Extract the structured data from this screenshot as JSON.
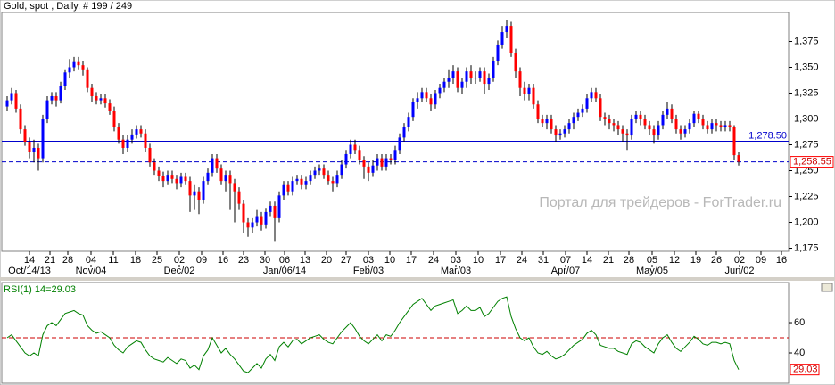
{
  "chart_data": [
    {
      "type": "candlestick",
      "title": "Gold, spot , Daily, # 199 / 249",
      "watermark": "Портал для трейдеров - ForTrader.ru",
      "up_color": "#0000ff",
      "down_color": "#ff0000",
      "wick_color": "#000000",
      "open": [
        1312,
        1318,
        1325,
        1310,
        1290,
        1278,
        1268,
        1272,
        1262,
        1300,
        1318,
        1322,
        1318,
        1332,
        1345,
        1350,
        1355,
        1352,
        1348,
        1330,
        1322,
        1318,
        1320,
        1315,
        1308,
        1292,
        1280,
        1272,
        1280,
        1285,
        1290,
        1286,
        1272,
        1258,
        1250,
        1245,
        1240,
        1246,
        1242,
        1238,
        1244,
        1240,
        1226,
        1230,
        1222,
        1240,
        1248,
        1262,
        1252,
        1240,
        1246,
        1238,
        1230,
        1218,
        1200,
        1195,
        1200,
        1206,
        1198,
        1210,
        1216,
        1204,
        1226,
        1236,
        1230,
        1240,
        1242,
        1236,
        1240,
        1246,
        1250,
        1252,
        1246,
        1240,
        1238,
        1246,
        1256,
        1266,
        1275,
        1270,
        1260,
        1254,
        1248,
        1255,
        1262,
        1254,
        1262,
        1260,
        1270,
        1282,
        1292,
        1302,
        1316,
        1320,
        1326,
        1320,
        1314,
        1325,
        1330,
        1336,
        1340,
        1346,
        1330,
        1336,
        1346,
        1340,
        1340,
        1346,
        1334,
        1340,
        1356,
        1372,
        1384,
        1390,
        1364,
        1346,
        1330,
        1324,
        1330,
        1314,
        1300,
        1296,
        1300,
        1290,
        1284,
        1286,
        1290,
        1296,
        1302,
        1306,
        1310,
        1320,
        1326,
        1320,
        1302,
        1300,
        1296,
        1294,
        1290,
        1286,
        1284,
        1300,
        1304,
        1300,
        1294,
        1290,
        1284,
        1294,
        1304,
        1310,
        1300,
        1290,
        1286,
        1290,
        1296,
        1305,
        1300,
        1294,
        1290,
        1296,
        1294,
        1292,
        1294,
        1292,
        1265
      ],
      "high": [
        1322,
        1330,
        1328,
        1314,
        1294,
        1282,
        1280,
        1276,
        1304,
        1322,
        1326,
        1326,
        1336,
        1348,
        1358,
        1360,
        1360,
        1356,
        1350,
        1334,
        1326,
        1324,
        1324,
        1319,
        1312,
        1296,
        1284,
        1284,
        1290,
        1294,
        1294,
        1290,
        1276,
        1262,
        1254,
        1249,
        1250,
        1250,
        1246,
        1248,
        1248,
        1244,
        1236,
        1234,
        1244,
        1252,
        1266,
        1266,
        1256,
        1250,
        1250,
        1242,
        1234,
        1222,
        1204,
        1204,
        1212,
        1210,
        1214,
        1220,
        1220,
        1230,
        1240,
        1240,
        1244,
        1246,
        1246,
        1244,
        1250,
        1254,
        1256,
        1256,
        1250,
        1244,
        1250,
        1260,
        1270,
        1280,
        1280,
        1274,
        1264,
        1258,
        1260,
        1266,
        1266,
        1266,
        1266,
        1274,
        1286,
        1296,
        1306,
        1320,
        1326,
        1330,
        1330,
        1324,
        1328,
        1334,
        1340,
        1348,
        1352,
        1350,
        1340,
        1350,
        1352,
        1346,
        1350,
        1350,
        1344,
        1360,
        1376,
        1390,
        1396,
        1394,
        1368,
        1350,
        1336,
        1334,
        1334,
        1318,
        1304,
        1304,
        1304,
        1294,
        1290,
        1294,
        1300,
        1306,
        1310,
        1314,
        1324,
        1330,
        1330,
        1324,
        1306,
        1304,
        1300,
        1298,
        1294,
        1290,
        1304,
        1308,
        1308,
        1304,
        1298,
        1294,
        1298,
        1308,
        1316,
        1314,
        1304,
        1294,
        1294,
        1300,
        1308,
        1308,
        1304,
        1298,
        1300,
        1300,
        1298,
        1298,
        1298,
        1294,
        1268
      ],
      "low": [
        1308,
        1314,
        1306,
        1286,
        1274,
        1262,
        1258,
        1250,
        1258,
        1296,
        1314,
        1312,
        1315,
        1328,
        1340,
        1346,
        1348,
        1342,
        1326,
        1316,
        1314,
        1314,
        1311,
        1304,
        1288,
        1276,
        1266,
        1268,
        1276,
        1281,
        1282,
        1268,
        1254,
        1246,
        1240,
        1234,
        1236,
        1238,
        1232,
        1234,
        1236,
        1210,
        1212,
        1208,
        1218,
        1236,
        1244,
        1248,
        1236,
        1230,
        1212,
        1200,
        1212,
        1190,
        1186,
        1190,
        1196,
        1192,
        1194,
        1206,
        1182,
        1200,
        1222,
        1226,
        1226,
        1236,
        1232,
        1232,
        1236,
        1242,
        1246,
        1242,
        1236,
        1230,
        1234,
        1242,
        1252,
        1262,
        1266,
        1256,
        1242,
        1240,
        1244,
        1250,
        1250,
        1250,
        1256,
        1256,
        1266,
        1278,
        1288,
        1298,
        1310,
        1316,
        1316,
        1308,
        1310,
        1320,
        1326,
        1330,
        1334,
        1326,
        1324,
        1330,
        1334,
        1334,
        1336,
        1324,
        1328,
        1336,
        1352,
        1368,
        1378,
        1360,
        1340,
        1322,
        1318,
        1318,
        1310,
        1296,
        1292,
        1290,
        1286,
        1278,
        1280,
        1282,
        1286,
        1290,
        1298,
        1302,
        1306,
        1316,
        1316,
        1298,
        1294,
        1290,
        1288,
        1284,
        1278,
        1270,
        1280,
        1296,
        1294,
        1290,
        1284,
        1276,
        1280,
        1290,
        1300,
        1296,
        1286,
        1280,
        1282,
        1286,
        1292,
        1296,
        1290,
        1286,
        1286,
        1288,
        1288,
        1288,
        1288,
        1260,
        1255
      ],
      "close": [
        1318,
        1325,
        1310,
        1290,
        1278,
        1268,
        1272,
        1262,
        1300,
        1318,
        1322,
        1318,
        1332,
        1345,
        1350,
        1355,
        1352,
        1348,
        1330,
        1322,
        1318,
        1320,
        1315,
        1308,
        1292,
        1280,
        1272,
        1280,
        1285,
        1290,
        1286,
        1272,
        1258,
        1250,
        1245,
        1240,
        1246,
        1242,
        1238,
        1244,
        1240,
        1226,
        1230,
        1222,
        1240,
        1248,
        1262,
        1252,
        1240,
        1246,
        1238,
        1230,
        1218,
        1200,
        1195,
        1200,
        1206,
        1198,
        1210,
        1216,
        1204,
        1226,
        1236,
        1230,
        1240,
        1242,
        1236,
        1240,
        1246,
        1250,
        1252,
        1246,
        1240,
        1238,
        1246,
        1256,
        1266,
        1275,
        1270,
        1260,
        1254,
        1248,
        1255,
        1262,
        1254,
        1262,
        1260,
        1270,
        1282,
        1292,
        1302,
        1316,
        1320,
        1326,
        1320,
        1314,
        1325,
        1330,
        1336,
        1340,
        1346,
        1330,
        1336,
        1346,
        1340,
        1340,
        1346,
        1334,
        1340,
        1356,
        1372,
        1384,
        1390,
        1364,
        1346,
        1330,
        1324,
        1330,
        1314,
        1300,
        1296,
        1300,
        1290,
        1284,
        1286,
        1290,
        1296,
        1302,
        1306,
        1310,
        1320,
        1326,
        1320,
        1302,
        1300,
        1296,
        1294,
        1290,
        1286,
        1284,
        1300,
        1304,
        1300,
        1294,
        1290,
        1284,
        1294,
        1304,
        1310,
        1300,
        1290,
        1286,
        1290,
        1296,
        1305,
        1300,
        1294,
        1290,
        1296,
        1294,
        1292,
        1294,
        1292,
        1265,
        1258.55
      ],
      "ylim": [
        1172,
        1403
      ],
      "yticks": [
        {
          "value": 1175,
          "label": "1,175"
        },
        {
          "value": 1200,
          "label": "1,200"
        },
        {
          "value": 1225,
          "label": "1,225"
        },
        {
          "value": 1250,
          "label": "1,250"
        },
        {
          "value": 1275,
          "label": "1,275"
        },
        {
          "value": 1300,
          "label": "1,300"
        },
        {
          "value": 1325,
          "label": "1,325"
        },
        {
          "value": 1350,
          "label": "1,350"
        },
        {
          "value": 1375,
          "label": "1,375"
        }
      ],
      "xlim": [
        -1.6,
        175.2
      ],
      "xticks": [
        {
          "value": 5,
          "label": "14"
        },
        {
          "value": 9.6,
          "label": "21"
        },
        {
          "value": 13.6,
          "label": "28"
        },
        {
          "value": 18.8,
          "label": "04"
        },
        {
          "value": 23.8,
          "label": "11"
        },
        {
          "value": 28.8,
          "label": "18"
        },
        {
          "value": 33.6,
          "label": "25"
        },
        {
          "value": 38.6,
          "label": "02"
        },
        {
          "value": 43.6,
          "label": "09"
        },
        {
          "value": 48.4,
          "label": "16"
        },
        {
          "value": 53,
          "label": "23"
        },
        {
          "value": 57.8,
          "label": "30"
        },
        {
          "value": 62.2,
          "label": "06"
        },
        {
          "value": 66.8,
          "label": "13"
        },
        {
          "value": 71.6,
          "label": "20"
        },
        {
          "value": 76,
          "label": "27"
        },
        {
          "value": 81,
          "label": "03"
        },
        {
          "value": 85.8,
          "label": "10"
        },
        {
          "value": 90.6,
          "label": "17"
        },
        {
          "value": 95.6,
          "label": "24"
        },
        {
          "value": 100.6,
          "label": "03"
        },
        {
          "value": 105.6,
          "label": "10"
        },
        {
          "value": 110.6,
          "label": "17"
        },
        {
          "value": 115.4,
          "label": "24"
        },
        {
          "value": 120.2,
          "label": "31"
        },
        {
          "value": 125.2,
          "label": "07"
        },
        {
          "value": 130,
          "label": "14"
        },
        {
          "value": 134.8,
          "label": "21"
        },
        {
          "value": 139.4,
          "label": "28"
        },
        {
          "value": 144.6,
          "label": "05"
        },
        {
          "value": 149.6,
          "label": "12"
        },
        {
          "value": 154.4,
          "label": "19"
        },
        {
          "value": 159,
          "label": "26"
        },
        {
          "value": 164.2,
          "label": "02"
        },
        {
          "value": 169,
          "label": "09"
        },
        {
          "value": 173.6,
          "label": "16"
        }
      ],
      "xlabels2": [
        {
          "value": 5,
          "label": "Oct/14/13"
        },
        {
          "value": 18.8,
          "label": "Nov/04"
        },
        {
          "value": 38.6,
          "label": "Dec/02"
        },
        {
          "value": 62.2,
          "label": "Jan/06/14"
        },
        {
          "value": 81,
          "label": "Feb/03"
        },
        {
          "value": 100.6,
          "label": "Mar/03"
        },
        {
          "value": 125.2,
          "label": "Apr/07"
        },
        {
          "value": 144.6,
          "label": "May/05"
        },
        {
          "value": 164.2,
          "label": "Jun/02"
        }
      ],
      "hlines": [
        {
          "value": 1278.5,
          "label": "1,278.50",
          "color": "#0000cc",
          "style": "solid"
        },
        {
          "value": 1258.55,
          "label": "1,258.55",
          "color": "#0000cc",
          "style": "dashed"
        }
      ]
    },
    {
      "type": "line",
      "title": "RSI(1) 14=29.03",
      "color": "#008000",
      "values": [
        50,
        52,
        48,
        44,
        40,
        38,
        40,
        38,
        52,
        58,
        60,
        58,
        62,
        66,
        67,
        68,
        66,
        65,
        58,
        55,
        53,
        54,
        52,
        50,
        45,
        42,
        40,
        44,
        46,
        48,
        47,
        42,
        38,
        36,
        35,
        34,
        37,
        35,
        33,
        36,
        35,
        30,
        32,
        29,
        38,
        42,
        50,
        45,
        40,
        43,
        39,
        36,
        32,
        28,
        27,
        30,
        33,
        30,
        36,
        39,
        35,
        44,
        47,
        44,
        48,
        49,
        46,
        48,
        50,
        51,
        52,
        49,
        47,
        46,
        50,
        54,
        57,
        60,
        56,
        51,
        48,
        46,
        49,
        52,
        48,
        52,
        51,
        55,
        60,
        64,
        68,
        72,
        74,
        76,
        72,
        68,
        71,
        72,
        73,
        74,
        75,
        66,
        68,
        71,
        68,
        68,
        70,
        64,
        66,
        70,
        74,
        76,
        77,
        64,
        56,
        50,
        48,
        50,
        44,
        40,
        39,
        41,
        38,
        36,
        37,
        39,
        42,
        45,
        47,
        49,
        53,
        55,
        52,
        45,
        44,
        43,
        43,
        41,
        40,
        39,
        46,
        48,
        47,
        44,
        42,
        40,
        46,
        50,
        52,
        47,
        43,
        41,
        44,
        47,
        51,
        49,
        46,
        45,
        47,
        47,
        46,
        47,
        46,
        35,
        29.03
      ],
      "ylim": [
        20,
        86.5
      ],
      "yticks": [
        40,
        60
      ],
      "xlim": [
        -1.6,
        175.2
      ],
      "level": 50,
      "level_color": "#cc0000"
    }
  ]
}
